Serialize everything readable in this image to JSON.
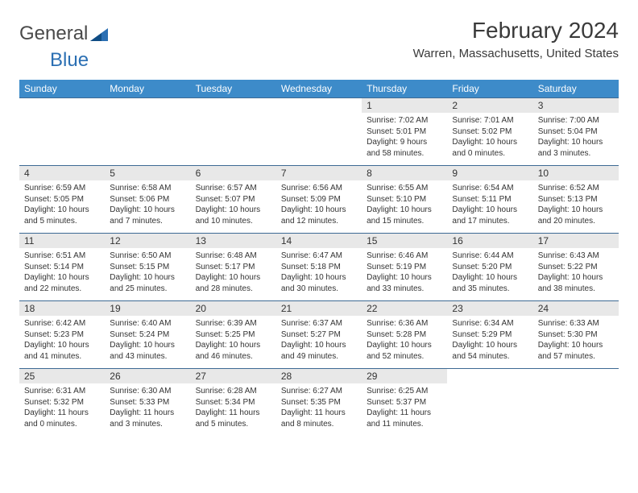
{
  "logo": {
    "part1": "General",
    "part2": "Blue"
  },
  "title": "February 2024",
  "location": "Warren, Massachusetts, United States",
  "colors": {
    "header_bg": "#3d8bc9",
    "header_fg": "#ffffff",
    "daynum_bg": "#e8e8e8",
    "row_border": "#3d6a94",
    "text": "#333333",
    "logo_blue": "#2b6fb3"
  },
  "weekdays": [
    "Sunday",
    "Monday",
    "Tuesday",
    "Wednesday",
    "Thursday",
    "Friday",
    "Saturday"
  ],
  "weeks": [
    [
      null,
      null,
      null,
      null,
      {
        "n": "1",
        "sr": "Sunrise: 7:02 AM",
        "ss": "Sunset: 5:01 PM",
        "d1": "Daylight: 9 hours",
        "d2": "and 58 minutes."
      },
      {
        "n": "2",
        "sr": "Sunrise: 7:01 AM",
        "ss": "Sunset: 5:02 PM",
        "d1": "Daylight: 10 hours",
        "d2": "and 0 minutes."
      },
      {
        "n": "3",
        "sr": "Sunrise: 7:00 AM",
        "ss": "Sunset: 5:04 PM",
        "d1": "Daylight: 10 hours",
        "d2": "and 3 minutes."
      }
    ],
    [
      {
        "n": "4",
        "sr": "Sunrise: 6:59 AM",
        "ss": "Sunset: 5:05 PM",
        "d1": "Daylight: 10 hours",
        "d2": "and 5 minutes."
      },
      {
        "n": "5",
        "sr": "Sunrise: 6:58 AM",
        "ss": "Sunset: 5:06 PM",
        "d1": "Daylight: 10 hours",
        "d2": "and 7 minutes."
      },
      {
        "n": "6",
        "sr": "Sunrise: 6:57 AM",
        "ss": "Sunset: 5:07 PM",
        "d1": "Daylight: 10 hours",
        "d2": "and 10 minutes."
      },
      {
        "n": "7",
        "sr": "Sunrise: 6:56 AM",
        "ss": "Sunset: 5:09 PM",
        "d1": "Daylight: 10 hours",
        "d2": "and 12 minutes."
      },
      {
        "n": "8",
        "sr": "Sunrise: 6:55 AM",
        "ss": "Sunset: 5:10 PM",
        "d1": "Daylight: 10 hours",
        "d2": "and 15 minutes."
      },
      {
        "n": "9",
        "sr": "Sunrise: 6:54 AM",
        "ss": "Sunset: 5:11 PM",
        "d1": "Daylight: 10 hours",
        "d2": "and 17 minutes."
      },
      {
        "n": "10",
        "sr": "Sunrise: 6:52 AM",
        "ss": "Sunset: 5:13 PM",
        "d1": "Daylight: 10 hours",
        "d2": "and 20 minutes."
      }
    ],
    [
      {
        "n": "11",
        "sr": "Sunrise: 6:51 AM",
        "ss": "Sunset: 5:14 PM",
        "d1": "Daylight: 10 hours",
        "d2": "and 22 minutes."
      },
      {
        "n": "12",
        "sr": "Sunrise: 6:50 AM",
        "ss": "Sunset: 5:15 PM",
        "d1": "Daylight: 10 hours",
        "d2": "and 25 minutes."
      },
      {
        "n": "13",
        "sr": "Sunrise: 6:48 AM",
        "ss": "Sunset: 5:17 PM",
        "d1": "Daylight: 10 hours",
        "d2": "and 28 minutes."
      },
      {
        "n": "14",
        "sr": "Sunrise: 6:47 AM",
        "ss": "Sunset: 5:18 PM",
        "d1": "Daylight: 10 hours",
        "d2": "and 30 minutes."
      },
      {
        "n": "15",
        "sr": "Sunrise: 6:46 AM",
        "ss": "Sunset: 5:19 PM",
        "d1": "Daylight: 10 hours",
        "d2": "and 33 minutes."
      },
      {
        "n": "16",
        "sr": "Sunrise: 6:44 AM",
        "ss": "Sunset: 5:20 PM",
        "d1": "Daylight: 10 hours",
        "d2": "and 35 minutes."
      },
      {
        "n": "17",
        "sr": "Sunrise: 6:43 AM",
        "ss": "Sunset: 5:22 PM",
        "d1": "Daylight: 10 hours",
        "d2": "and 38 minutes."
      }
    ],
    [
      {
        "n": "18",
        "sr": "Sunrise: 6:42 AM",
        "ss": "Sunset: 5:23 PM",
        "d1": "Daylight: 10 hours",
        "d2": "and 41 minutes."
      },
      {
        "n": "19",
        "sr": "Sunrise: 6:40 AM",
        "ss": "Sunset: 5:24 PM",
        "d1": "Daylight: 10 hours",
        "d2": "and 43 minutes."
      },
      {
        "n": "20",
        "sr": "Sunrise: 6:39 AM",
        "ss": "Sunset: 5:25 PM",
        "d1": "Daylight: 10 hours",
        "d2": "and 46 minutes."
      },
      {
        "n": "21",
        "sr": "Sunrise: 6:37 AM",
        "ss": "Sunset: 5:27 PM",
        "d1": "Daylight: 10 hours",
        "d2": "and 49 minutes."
      },
      {
        "n": "22",
        "sr": "Sunrise: 6:36 AM",
        "ss": "Sunset: 5:28 PM",
        "d1": "Daylight: 10 hours",
        "d2": "and 52 minutes."
      },
      {
        "n": "23",
        "sr": "Sunrise: 6:34 AM",
        "ss": "Sunset: 5:29 PM",
        "d1": "Daylight: 10 hours",
        "d2": "and 54 minutes."
      },
      {
        "n": "24",
        "sr": "Sunrise: 6:33 AM",
        "ss": "Sunset: 5:30 PM",
        "d1": "Daylight: 10 hours",
        "d2": "and 57 minutes."
      }
    ],
    [
      {
        "n": "25",
        "sr": "Sunrise: 6:31 AM",
        "ss": "Sunset: 5:32 PM",
        "d1": "Daylight: 11 hours",
        "d2": "and 0 minutes."
      },
      {
        "n": "26",
        "sr": "Sunrise: 6:30 AM",
        "ss": "Sunset: 5:33 PM",
        "d1": "Daylight: 11 hours",
        "d2": "and 3 minutes."
      },
      {
        "n": "27",
        "sr": "Sunrise: 6:28 AM",
        "ss": "Sunset: 5:34 PM",
        "d1": "Daylight: 11 hours",
        "d2": "and 5 minutes."
      },
      {
        "n": "28",
        "sr": "Sunrise: 6:27 AM",
        "ss": "Sunset: 5:35 PM",
        "d1": "Daylight: 11 hours",
        "d2": "and 8 minutes."
      },
      {
        "n": "29",
        "sr": "Sunrise: 6:25 AM",
        "ss": "Sunset: 5:37 PM",
        "d1": "Daylight: 11 hours",
        "d2": "and 11 minutes."
      },
      null,
      null
    ]
  ]
}
